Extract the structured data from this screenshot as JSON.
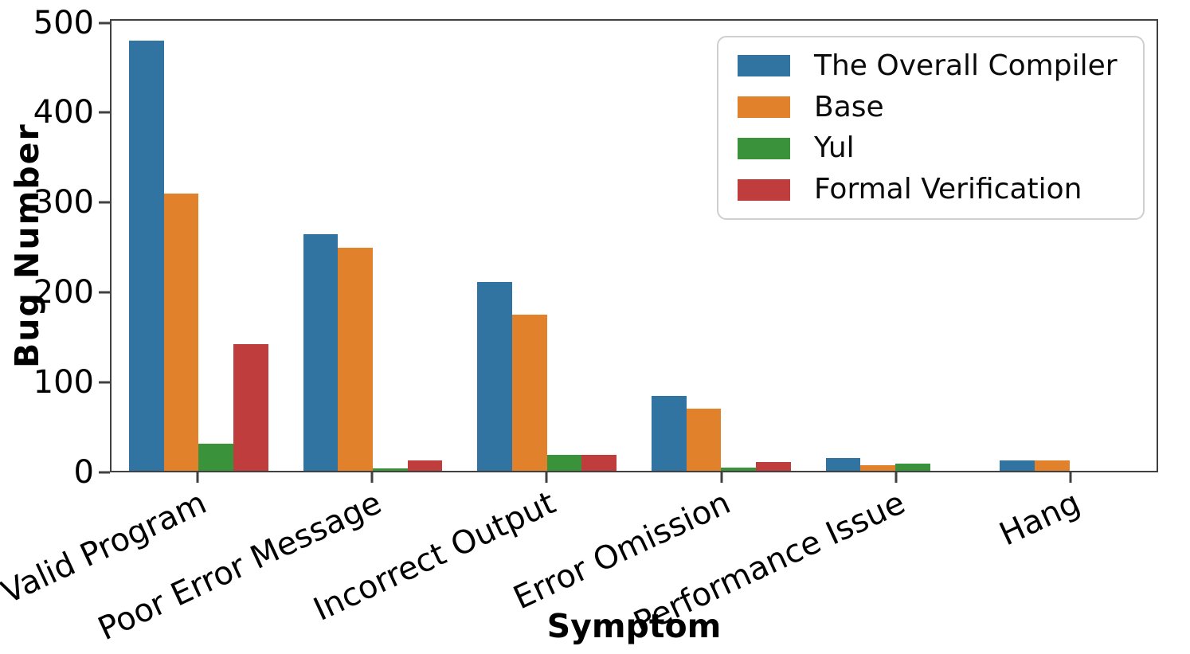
{
  "figure": {
    "background": "#ffffff",
    "spine_color": "#404040"
  },
  "chart_data": {
    "type": "bar",
    "title": "",
    "xlabel": "Symptom",
    "ylabel": "Bug Number",
    "categories": [
      "Reject Valid Program",
      "Poor Error Message",
      "Incorrect Output",
      "Error Omission",
      "Performance Issue",
      "Hang"
    ],
    "series": [
      {
        "name": "The Overall Compiler",
        "color": "#3274A1",
        "values": [
          482,
          265,
          211,
          84,
          14,
          12
        ]
      },
      {
        "name": "Base",
        "color": "#E1812C",
        "values": [
          310,
          250,
          175,
          70,
          6,
          12
        ]
      },
      {
        "name": "Yul",
        "color": "#3A923A",
        "values": [
          30,
          3,
          18,
          4,
          8,
          0
        ]
      },
      {
        "name": "Formal Verification",
        "color": "#C03D3E",
        "values": [
          142,
          12,
          18,
          10,
          0,
          0
        ]
      }
    ],
    "yticks": [
      0,
      100,
      200,
      300,
      400,
      500
    ],
    "ylim": [
      0,
      504
    ],
    "grid": false,
    "legend_position": "upper right",
    "bar_group_width_fraction": 0.8,
    "xtick_rotation_deg": 25
  }
}
